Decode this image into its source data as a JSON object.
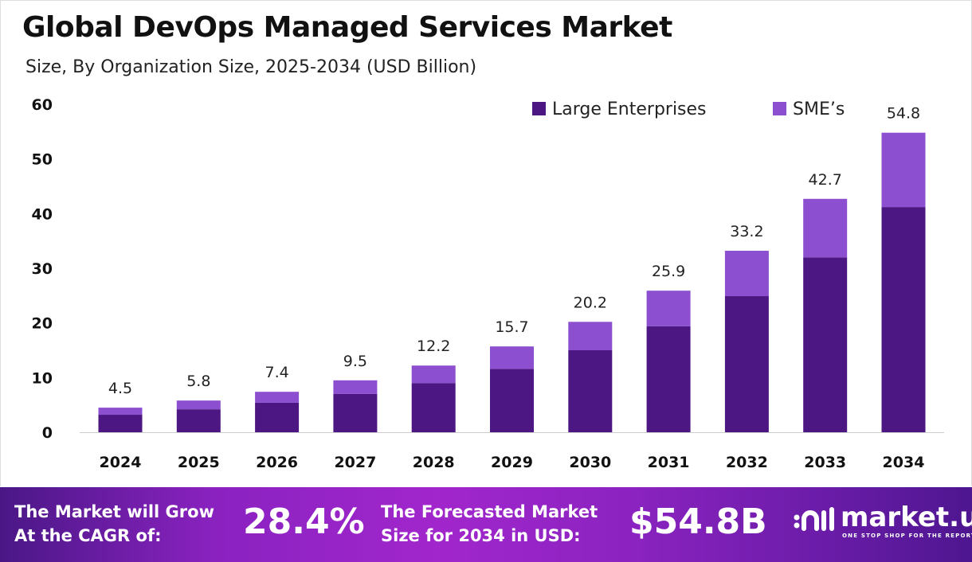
{
  "chart_data": {
    "type": "bar",
    "stacked": true,
    "title": "Global DevOps Managed Services Market",
    "subtitle": "Size, By Organization Size, 2025-2034 (USD Billion)",
    "categories": [
      "2024",
      "2025",
      "2026",
      "2027",
      "2028",
      "2029",
      "2030",
      "2031",
      "2032",
      "2033",
      "2034"
    ],
    "series": [
      {
        "name": "Large Enterprises",
        "color": "#4c1783",
        "values": [
          3.2,
          4.2,
          5.4,
          7.0,
          9.0,
          11.6,
          15.0,
          19.4,
          24.9,
          32.0,
          41.2
        ]
      },
      {
        "name": "SME’s",
        "color": "#8c4fd0",
        "values": [
          1.3,
          1.6,
          2.0,
          2.5,
          3.2,
          4.1,
          5.2,
          6.5,
          8.3,
          10.7,
          13.6
        ]
      }
    ],
    "totals": [
      "4.5",
      "5.8",
      "7.4",
      "9.5",
      "12.2",
      "15.7",
      "20.2",
      "25.9",
      "33.2",
      "42.7",
      "54.8"
    ],
    "yticks": [
      "0",
      "10",
      "20",
      "30",
      "40",
      "50",
      "60"
    ],
    "ylim": [
      0,
      60
    ],
    "grid": false,
    "legend_position": "top-right"
  },
  "footer": {
    "cagr_text_1": "The Market will Grow",
    "cagr_text_2": "At the CAGR of:",
    "cagr_value": "28.4%",
    "forecast_text_1": "The Forecasted Market",
    "forecast_text_2": "Size for 2034 in USD:",
    "forecast_value": "$54.8B",
    "logo_name": "market.us",
    "logo_tagline": "ONE STOP SHOP FOR THE REPORTS"
  }
}
